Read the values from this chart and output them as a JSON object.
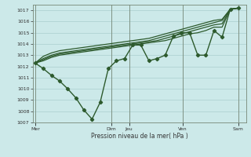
{
  "xlabel": "Pression niveau de la mer( hPa )",
  "ylim": [
    1007,
    1017.5
  ],
  "yticks": [
    1007,
    1008,
    1009,
    1010,
    1011,
    1012,
    1013,
    1014,
    1015,
    1016,
    1017
  ],
  "bg_color": "#cce9e9",
  "grid_color": "#aacfcf",
  "line_color": "#2d5a2d",
  "xtick_labels": [
    "Mer",
    "",
    "Dim",
    "Jeu",
    "",
    "Ven",
    "",
    "Sam"
  ],
  "xtick_positions": [
    0,
    2.5,
    3.0,
    3.7,
    5.2,
    5.8,
    7.2,
    8.0
  ],
  "vline_positions": [
    0,
    3.0,
    3.7,
    5.8,
    8.0
  ],
  "lines": [
    {
      "y": [
        1012.3,
        1011.8,
        1011.2,
        1010.7,
        1010.0,
        1009.2,
        1008.1,
        1007.3,
        1008.8,
        1011.8,
        1012.5,
        1012.7,
        1013.9,
        1013.9,
        1012.5,
        1012.7,
        1013.0,
        1014.7,
        1015.0,
        1015.0,
        1013.0,
        1013.0,
        1015.2,
        1014.6,
        1017.1,
        1017.2
      ],
      "marker": "D",
      "ms": 2.2,
      "lw": 1.0,
      "zorder": 5
    },
    {
      "y": [
        1012.3,
        1012.5,
        1012.8,
        1013.0,
        1013.1,
        1013.2,
        1013.3,
        1013.4,
        1013.5,
        1013.6,
        1013.7,
        1013.8,
        1013.9,
        1014.0,
        1014.1,
        1014.2,
        1014.3,
        1014.5,
        1014.7,
        1014.9,
        1015.0,
        1015.2,
        1015.5,
        1015.5,
        1017.1,
        1017.2
      ],
      "marker": null,
      "ms": 0,
      "lw": 0.9,
      "zorder": 3
    },
    {
      "y": [
        1012.3,
        1012.6,
        1012.9,
        1013.1,
        1013.2,
        1013.3,
        1013.4,
        1013.5,
        1013.6,
        1013.7,
        1013.8,
        1013.9,
        1014.0,
        1014.1,
        1014.2,
        1014.3,
        1014.5,
        1014.7,
        1014.9,
        1015.1,
        1015.3,
        1015.5,
        1015.7,
        1015.8,
        1017.1,
        1017.2
      ],
      "marker": null,
      "ms": 0,
      "lw": 0.9,
      "zorder": 3
    },
    {
      "y": [
        1012.3,
        1012.7,
        1013.0,
        1013.2,
        1013.3,
        1013.4,
        1013.5,
        1013.6,
        1013.7,
        1013.8,
        1013.9,
        1014.0,
        1014.1,
        1014.2,
        1014.3,
        1014.5,
        1014.7,
        1014.9,
        1015.1,
        1015.3,
        1015.5,
        1015.7,
        1015.9,
        1016.1,
        1017.1,
        1017.2
      ],
      "marker": null,
      "ms": 0,
      "lw": 0.9,
      "zorder": 3
    },
    {
      "y": [
        1012.3,
        1012.9,
        1013.2,
        1013.4,
        1013.5,
        1013.6,
        1013.7,
        1013.8,
        1013.9,
        1014.0,
        1014.1,
        1014.2,
        1014.3,
        1014.4,
        1014.5,
        1014.7,
        1014.9,
        1015.1,
        1015.3,
        1015.5,
        1015.7,
        1015.9,
        1016.1,
        1016.2,
        1017.1,
        1017.2
      ],
      "marker": null,
      "ms": 0,
      "lw": 0.9,
      "zorder": 3
    }
  ],
  "figsize": [
    3.2,
    2.0
  ],
  "dpi": 100
}
